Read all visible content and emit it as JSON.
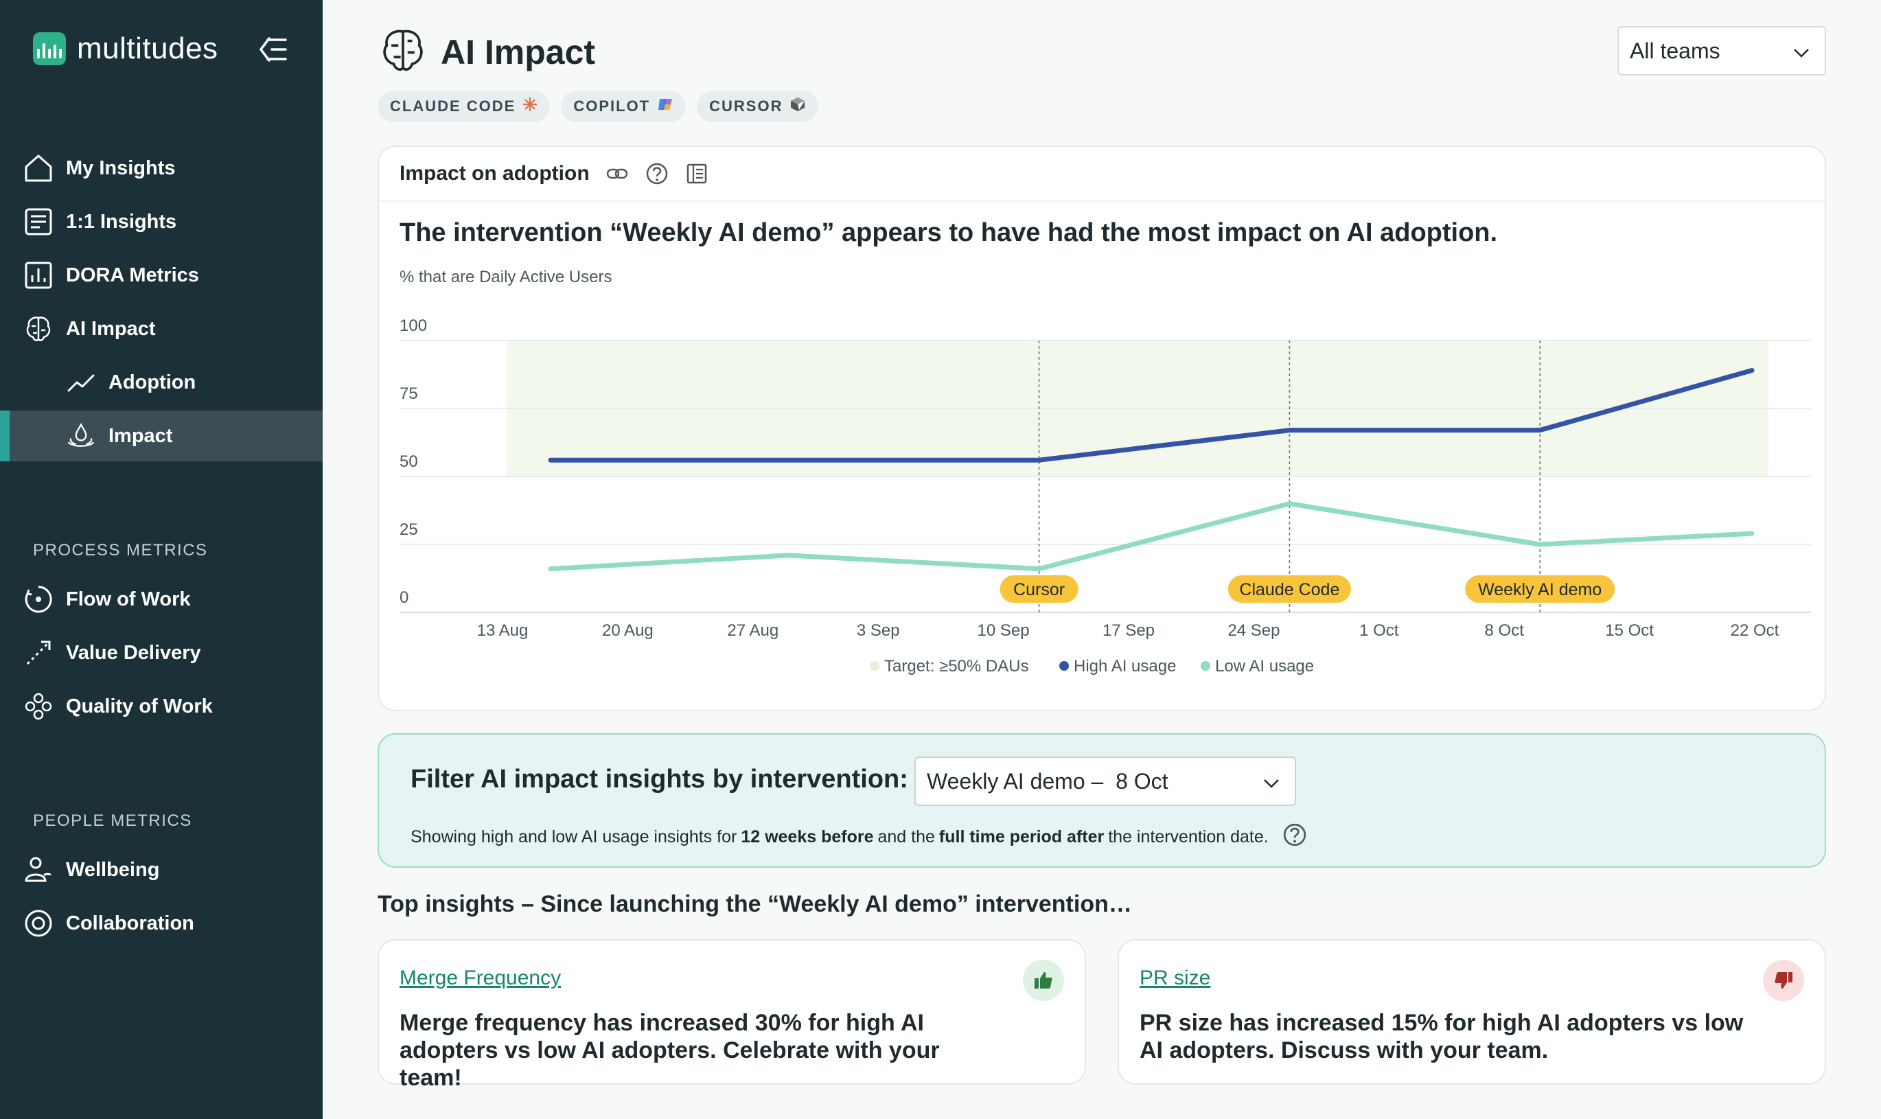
{
  "brand": {
    "name": "multitudes"
  },
  "sidebar": {
    "items": [
      {
        "label": "My Insights"
      },
      {
        "label": "1:1 Insights"
      },
      {
        "label": "DORA Metrics"
      },
      {
        "label": "AI Impact"
      },
      {
        "label": "Adoption"
      },
      {
        "label": "Impact"
      },
      {
        "label": "Flow of Work"
      },
      {
        "label": "Value Delivery"
      },
      {
        "label": "Quality of Work"
      },
      {
        "label": "Wellbeing"
      },
      {
        "label": "Collaboration"
      }
    ],
    "sections": {
      "process": "PROCESS METRICS",
      "people": "PEOPLE METRICS"
    }
  },
  "header": {
    "title": "AI Impact",
    "team_select": "All teams",
    "chips": [
      "CLAUDE CODE",
      "COPILOT",
      "CURSOR"
    ]
  },
  "chart_card": {
    "title": "Impact on adoption",
    "headline": "The intervention “Weekly AI demo” appears to have had the most impact on AI adoption.",
    "y_caption": "% that are Daily Active Users"
  },
  "chart_data": {
    "type": "line",
    "x": [
      "13 Aug",
      "20 Aug",
      "27 Aug",
      "3 Sep",
      "10 Sep",
      "17 Sep",
      "24 Sep",
      "1 Oct",
      "8 Oct",
      "15 Oct",
      "22 Oct"
    ],
    "ylim": [
      0,
      100
    ],
    "yticks": [
      0,
      25,
      50,
      75,
      100
    ],
    "target_band": {
      "label": "Target: ≥50% DAUs",
      "from": 50,
      "to": 100
    },
    "series": [
      {
        "name": "High AI usage",
        "color": "#3453a4",
        "points": [
          [
            "13 Aug",
            56
          ],
          [
            "10 Sep",
            56
          ],
          [
            "24 Sep",
            67
          ],
          [
            "8 Oct",
            67
          ],
          [
            "22 Oct",
            89
          ]
        ]
      },
      {
        "name": "Low AI usage",
        "color": "#8fdcc0",
        "points": [
          [
            "13 Aug",
            16
          ],
          [
            "27 Aug",
            21
          ],
          [
            "10 Sep",
            16
          ],
          [
            "24 Sep",
            40
          ],
          [
            "8 Oct",
            25
          ],
          [
            "22 Oct",
            29
          ]
        ]
      }
    ],
    "interventions": [
      {
        "label": "Cursor",
        "x": "10 Sep"
      },
      {
        "label": "Claude Code",
        "x": "24 Sep"
      },
      {
        "label": "Weekly AI demo",
        "x": "8 Oct"
      }
    ],
    "legend": [
      "Target: ≥50% DAUs",
      "High AI usage",
      "Low AI usage"
    ],
    "colors": {
      "high": "#3453a4",
      "low": "#8fdcc0",
      "target": "#f2f8ec",
      "marker": "#f8c43c"
    }
  },
  "filter": {
    "title": "Filter AI impact insights by intervention:",
    "selected": "Weekly AI demo –  8 Oct",
    "note_prefix": "Showing high and low AI usage insights for",
    "note_bold1": "12 weeks before",
    "note_mid": "and the",
    "note_bold2": "full time period after",
    "note_suffix": "the intervention date."
  },
  "insights": {
    "title": "Top insights – Since launching the “Weekly AI demo” intervention…",
    "cards": [
      {
        "link": "Merge Frequency",
        "text": "Merge frequency has increased 30% for high AI adopters vs low AI adopters. Celebrate with your team!",
        "sentiment": "positive"
      },
      {
        "link": "PR size",
        "text": "PR size has increased 15% for high AI adopters vs low AI adopters. Discuss with your team.",
        "sentiment": "negative"
      }
    ]
  }
}
